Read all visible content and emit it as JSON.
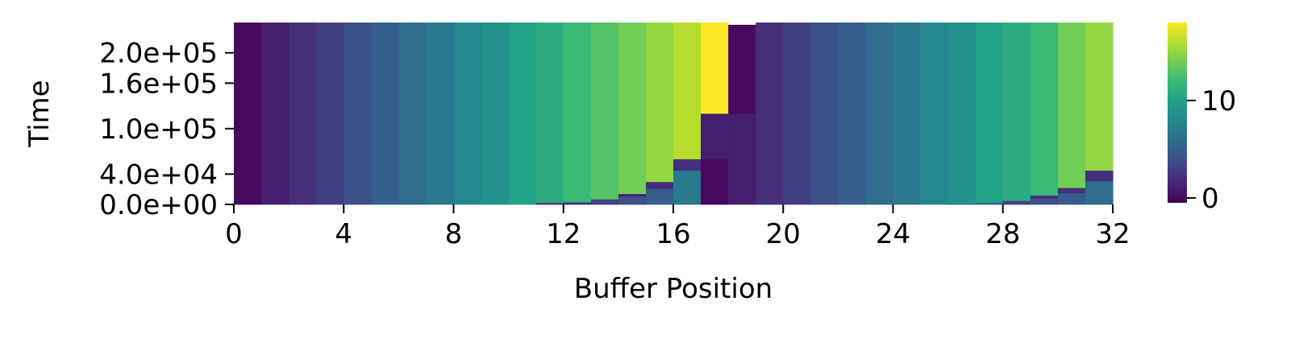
{
  "chart_data": {
    "type": "heatmap",
    "colormap": "viridis",
    "xlabel": "Buffer Position",
    "ylabel": "Time",
    "x_range": [
      0,
      32
    ],
    "y_range": [
      0,
      240000
    ],
    "x_ticks": [
      0,
      4,
      8,
      12,
      16,
      20,
      24,
      28,
      32
    ],
    "x_tick_labels": [
      "0",
      "4",
      "8",
      "12",
      "16",
      "20",
      "24",
      "28",
      "32"
    ],
    "y_ticks": [
      0,
      40000,
      100000,
      160000,
      200000
    ],
    "y_tick_labels": [
      "0.0e+00",
      "4.0e+04",
      "1.0e+05",
      "1.6e+05",
      "2.0e+05"
    ],
    "colorbar": {
      "range": [
        -0.5,
        18
      ],
      "ticks": [
        0,
        10
      ],
      "tick_labels": [
        "0",
        "10"
      ]
    },
    "columns": [
      {
        "position": 0,
        "segments": [
          {
            "t_start": 0,
            "t_end": 240000,
            "value": 0
          }
        ]
      },
      {
        "position": 1,
        "segments": [
          {
            "t_start": 0,
            "t_end": 240000,
            "value": 1
          }
        ]
      },
      {
        "position": 2,
        "segments": [
          {
            "t_start": 0,
            "t_end": 240000,
            "value": 2
          }
        ]
      },
      {
        "position": 3,
        "segments": [
          {
            "t_start": 0,
            "t_end": 240000,
            "value": 3
          }
        ]
      },
      {
        "position": 4,
        "segments": [
          {
            "t_start": 0,
            "t_end": 240000,
            "value": 4
          }
        ]
      },
      {
        "position": 5,
        "segments": [
          {
            "t_start": 0,
            "t_end": 240000,
            "value": 5
          }
        ]
      },
      {
        "position": 6,
        "segments": [
          {
            "t_start": 0,
            "t_end": 240000,
            "value": 6
          }
        ]
      },
      {
        "position": 7,
        "segments": [
          {
            "t_start": 0,
            "t_end": 240000,
            "value": 7
          }
        ]
      },
      {
        "position": 8,
        "segments": [
          {
            "t_start": 0,
            "t_end": 240000,
            "value": 8
          }
        ]
      },
      {
        "position": 9,
        "segments": [
          {
            "t_start": 0,
            "t_end": 240000,
            "value": 9
          }
        ]
      },
      {
        "position": 10,
        "segments": [
          {
            "t_start": 0,
            "t_end": 240000,
            "value": 10
          }
        ]
      },
      {
        "position": 11,
        "segments": [
          {
            "t_start": 0,
            "t_end": 2000,
            "value": 1
          },
          {
            "t_start": 2000,
            "t_end": 240000,
            "value": 11
          }
        ]
      },
      {
        "position": 12,
        "segments": [
          {
            "t_start": 0,
            "t_end": 3000,
            "value": 2
          },
          {
            "t_start": 3000,
            "t_end": 240000,
            "value": 12
          }
        ]
      },
      {
        "position": 13,
        "segments": [
          {
            "t_start": 0,
            "t_end": 7000,
            "value": 3
          },
          {
            "t_start": 7000,
            "t_end": 240000,
            "value": 13
          }
        ]
      },
      {
        "position": 14,
        "segments": [
          {
            "t_start": 0,
            "t_end": 11000,
            "value": 4
          },
          {
            "t_start": 11000,
            "t_end": 14000,
            "value": 1
          },
          {
            "t_start": 14000,
            "t_end": 240000,
            "value": 14
          }
        ]
      },
      {
        "position": 15,
        "segments": [
          {
            "t_start": 0,
            "t_end": 21000,
            "value": 5
          },
          {
            "t_start": 21000,
            "t_end": 30000,
            "value": 2
          },
          {
            "t_start": 30000,
            "t_end": 240000,
            "value": 15
          }
        ]
      },
      {
        "position": 16,
        "segments": [
          {
            "t_start": 0,
            "t_end": 45000,
            "value": 7
          },
          {
            "t_start": 45000,
            "t_end": 60000,
            "value": 2
          },
          {
            "t_start": 60000,
            "t_end": 240000,
            "value": 16
          }
        ]
      },
      {
        "position": 17,
        "segments": [
          {
            "t_start": 0,
            "t_end": 60000,
            "value": 0
          },
          {
            "t_start": 60000,
            "t_end": 120000,
            "value": 1
          },
          {
            "t_start": 120000,
            "t_end": 240000,
            "value": 18
          }
        ]
      },
      {
        "position": 18,
        "segments": [
          {
            "t_start": 0,
            "t_end": 120000,
            "value": 1
          },
          {
            "t_start": 120000,
            "t_end": 237000,
            "value": 0
          }
        ]
      },
      {
        "position": 19,
        "segments": [
          {
            "t_start": 0,
            "t_end": 240000,
            "value": 2
          }
        ]
      },
      {
        "position": 20,
        "segments": [
          {
            "t_start": 0,
            "t_end": 240000,
            "value": 3
          }
        ]
      },
      {
        "position": 21,
        "segments": [
          {
            "t_start": 0,
            "t_end": 240000,
            "value": 4
          }
        ]
      },
      {
        "position": 22,
        "segments": [
          {
            "t_start": 0,
            "t_end": 240000,
            "value": 5
          }
        ]
      },
      {
        "position": 23,
        "segments": [
          {
            "t_start": 0,
            "t_end": 240000,
            "value": 6
          }
        ]
      },
      {
        "position": 24,
        "segments": [
          {
            "t_start": 0,
            "t_end": 240000,
            "value": 7
          }
        ]
      },
      {
        "position": 25,
        "segments": [
          {
            "t_start": 0,
            "t_end": 240000,
            "value": 8
          }
        ]
      },
      {
        "position": 26,
        "segments": [
          {
            "t_start": 0,
            "t_end": 1000,
            "value": 4
          },
          {
            "t_start": 1000,
            "t_end": 240000,
            "value": 9
          }
        ]
      },
      {
        "position": 27,
        "segments": [
          {
            "t_start": 0,
            "t_end": 2000,
            "value": 4
          },
          {
            "t_start": 2000,
            "t_end": 240000,
            "value": 10
          }
        ]
      },
      {
        "position": 28,
        "segments": [
          {
            "t_start": 0,
            "t_end": 5000,
            "value": 3
          },
          {
            "t_start": 5000,
            "t_end": 240000,
            "value": 11
          }
        ]
      },
      {
        "position": 29,
        "segments": [
          {
            "t_start": 0,
            "t_end": 8000,
            "value": 4
          },
          {
            "t_start": 8000,
            "t_end": 12000,
            "value": 2
          },
          {
            "t_start": 12000,
            "t_end": 240000,
            "value": 12
          }
        ]
      },
      {
        "position": 30,
        "segments": [
          {
            "t_start": 0,
            "t_end": 15000,
            "value": 5
          },
          {
            "t_start": 15000,
            "t_end": 22000,
            "value": 2
          },
          {
            "t_start": 22000,
            "t_end": 240000,
            "value": 14
          }
        ]
      },
      {
        "position": 31,
        "segments": [
          {
            "t_start": 0,
            "t_end": 31000,
            "value": 6
          },
          {
            "t_start": 31000,
            "t_end": 45000,
            "value": 2
          },
          {
            "t_start": 45000,
            "t_end": 240000,
            "value": 15
          }
        ]
      }
    ]
  }
}
